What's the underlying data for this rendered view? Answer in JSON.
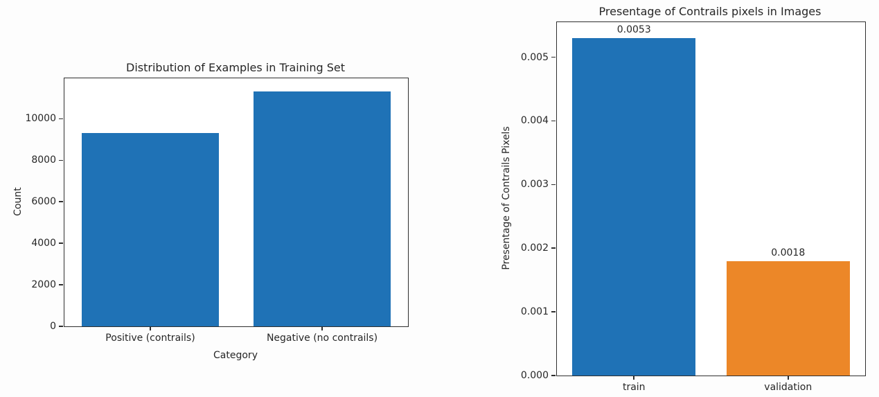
{
  "figure": {
    "background": "#fdfdfd",
    "text_color": "#262626",
    "axis_color": "#2e2e2e"
  },
  "chart_data": [
    {
      "type": "bar",
      "title": "Distribution of Examples in Training Set",
      "xlabel": "Category",
      "ylabel": "Count",
      "categories": [
        "Positive (contrails)",
        "Negative (no contrails)"
      ],
      "values": [
        9300,
        11300
      ],
      "bar_colors": [
        "#1f72b6",
        "#1f72b6"
      ],
      "ylim": [
        0,
        11950
      ],
      "ytick_values": [
        0,
        2000,
        4000,
        6000,
        8000,
        10000
      ],
      "ytick_labels": [
        "0",
        "2000",
        "4000",
        "6000",
        "8000",
        "10000"
      ],
      "bar_value_labels": null,
      "grid": false,
      "legend": null
    },
    {
      "type": "bar",
      "title": "Presentage of Contrails pixels in Images",
      "xlabel": "",
      "ylabel": "Presentage of Contrails Pixels",
      "categories": [
        "train",
        "validation"
      ],
      "values": [
        0.0053,
        0.0018
      ],
      "bar_colors": [
        "#1f72b6",
        "#ec8728"
      ],
      "ylim": [
        0,
        0.00555
      ],
      "ytick_values": [
        0,
        0.001,
        0.002,
        0.003,
        0.004,
        0.005
      ],
      "ytick_labels": [
        "0.000",
        "0.001",
        "0.002",
        "0.003",
        "0.004",
        "0.005"
      ],
      "bar_value_labels": [
        "0.0053",
        "0.0018"
      ],
      "grid": false,
      "legend": null
    }
  ]
}
